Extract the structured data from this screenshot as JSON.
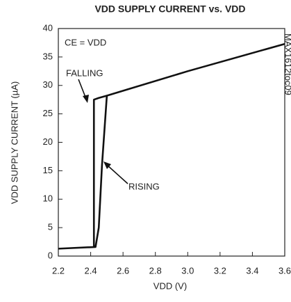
{
  "chart_data": {
    "type": "line",
    "title": "VDD SUPPLY CURRENT vs. VDD",
    "x_label": "VDD (V)",
    "y_label": "VDD SUPPLY CURRENT (µA)",
    "annotations": [
      "CE = VDD",
      "FALLING",
      "RISING",
      "MAX1612toc09"
    ],
    "xlim": [
      2.2,
      3.6
    ],
    "ylim": [
      0,
      40
    ],
    "xticks": [
      2.2,
      2.4,
      2.6,
      2.8,
      {
        "value": 3,
        "label": "3.0"
      },
      3.2,
      3.4,
      3.6
    ],
    "yticks": [
      0,
      5,
      10,
      15,
      20,
      25,
      30,
      35,
      40
    ],
    "grid": false,
    "series": [
      {
        "color": "#111111",
        "x": [
          2.2,
          2.43,
          2.45,
          2.47,
          2.5,
          3.0,
          3.6
        ],
        "values": [
          1.3,
          1.6,
          5,
          16,
          28.2,
          32.5,
          37.3
        ]
      },
      {
        "color": "#111111",
        "x": [
          2.42,
          2.42,
          2.45,
          2.5
        ],
        "values": [
          1.6,
          27.5,
          27.8,
          28.2
        ]
      }
    ]
  }
}
